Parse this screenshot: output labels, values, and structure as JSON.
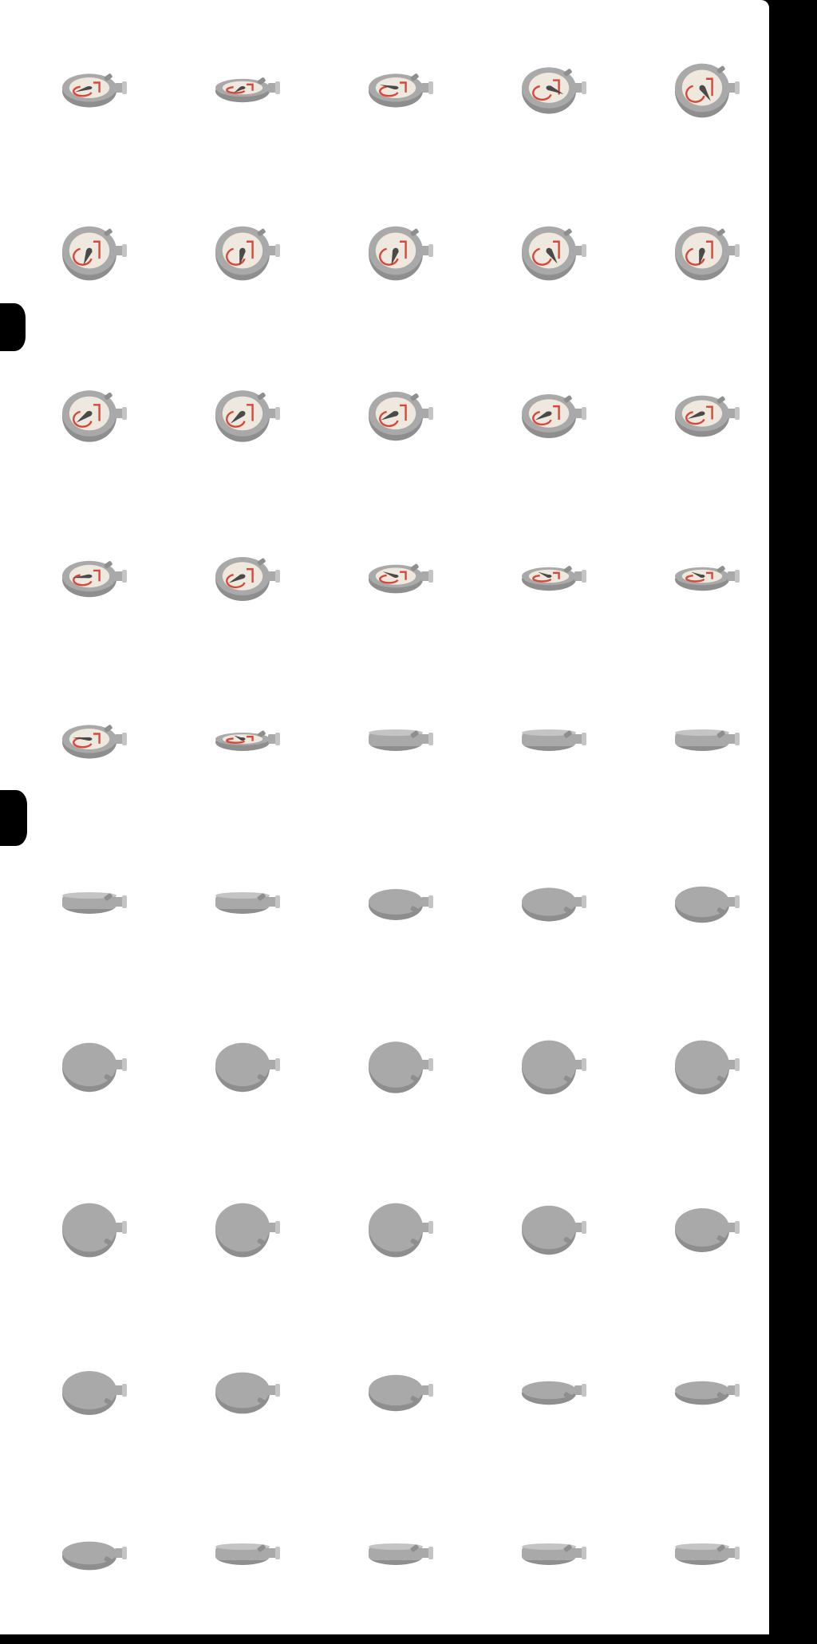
{
  "colors": {
    "background": "#000000",
    "sheet": "#ffffff",
    "body": "#a9a9a9",
    "body_light": "#c4c4c4",
    "body_dark": "#8e8e8e",
    "face": "#efe8de",
    "marking": "#d9473a",
    "needle": "#4a4a4a"
  },
  "sprite_sheet": {
    "columns": 5,
    "rows": 10,
    "frame_count": 50,
    "frames": [
      {
        "view": "front",
        "tilt": 0.55,
        "angle": 150
      },
      {
        "view": "front",
        "tilt": 0.35,
        "angle": 120
      },
      {
        "view": "front",
        "tilt": 0.55,
        "angle": 200
      },
      {
        "view": "front",
        "tilt": 0.8,
        "angle": 30
      },
      {
        "view": "front",
        "tilt": 0.95,
        "angle": 60
      },
      {
        "view": "front",
        "tilt": 0.95,
        "angle": 110
      },
      {
        "view": "front",
        "tilt": 0.95,
        "angle": 100
      },
      {
        "view": "front",
        "tilt": 0.95,
        "angle": 105
      },
      {
        "view": "front",
        "tilt": 0.95,
        "angle": 60
      },
      {
        "view": "front",
        "tilt": 0.95,
        "angle": 100
      },
      {
        "view": "front",
        "tilt": 0.9,
        "angle": 140
      },
      {
        "view": "front",
        "tilt": 0.9,
        "angle": 135
      },
      {
        "view": "front",
        "tilt": 0.85,
        "angle": 150
      },
      {
        "view": "front",
        "tilt": 0.75,
        "angle": 145
      },
      {
        "view": "front",
        "tilt": 0.7,
        "angle": 150
      },
      {
        "view": "front",
        "tilt": 0.6,
        "angle": 170
      },
      {
        "view": "front",
        "tilt": 0.75,
        "angle": 145
      },
      {
        "view": "front",
        "tilt": 0.45,
        "angle": 220
      },
      {
        "view": "front",
        "tilt": 0.35,
        "angle": 230
      },
      {
        "view": "front",
        "tilt": 0.35,
        "angle": 230
      },
      {
        "view": "front",
        "tilt": 0.55,
        "angle": 190
      },
      {
        "view": "front",
        "tilt": 0.25,
        "angle": 240
      },
      {
        "view": "edge",
        "tilt": 0.1,
        "angle": 0
      },
      {
        "view": "edge",
        "tilt": 0.05,
        "angle": 0
      },
      {
        "view": "edge",
        "tilt": 0.12,
        "angle": 0
      },
      {
        "view": "edge",
        "tilt": 0.08,
        "angle": 0
      },
      {
        "view": "edge",
        "tilt": 0.05,
        "angle": 0
      },
      {
        "view": "back",
        "tilt": 0.5,
        "angle": 0
      },
      {
        "view": "back",
        "tilt": 0.55,
        "angle": 0
      },
      {
        "view": "back",
        "tilt": 0.6,
        "angle": 0
      },
      {
        "view": "back",
        "tilt": 0.85,
        "angle": 0
      },
      {
        "view": "back",
        "tilt": 0.85,
        "angle": 0
      },
      {
        "view": "back",
        "tilt": 0.9,
        "angle": 0
      },
      {
        "view": "back",
        "tilt": 0.95,
        "angle": 0
      },
      {
        "view": "back",
        "tilt": 0.95,
        "angle": 0
      },
      {
        "view": "back",
        "tilt": 0.95,
        "angle": 0
      },
      {
        "view": "back",
        "tilt": 0.95,
        "angle": 0
      },
      {
        "view": "back",
        "tilt": 0.95,
        "angle": 0
      },
      {
        "view": "back",
        "tilt": 0.85,
        "angle": 0
      },
      {
        "view": "back",
        "tilt": 0.75,
        "angle": 0
      },
      {
        "view": "back",
        "tilt": 0.75,
        "angle": 0
      },
      {
        "view": "back",
        "tilt": 0.7,
        "angle": 0
      },
      {
        "view": "back",
        "tilt": 0.6,
        "angle": 0
      },
      {
        "view": "back",
        "tilt": 0.35,
        "angle": 0
      },
      {
        "view": "back",
        "tilt": 0.35,
        "angle": 0
      },
      {
        "view": "back",
        "tilt": 0.45,
        "angle": 0
      },
      {
        "view": "edge",
        "tilt": 0.1,
        "angle": 0
      },
      {
        "view": "edge",
        "tilt": 0.12,
        "angle": 0
      },
      {
        "view": "edge",
        "tilt": 0.18,
        "angle": 0
      },
      {
        "view": "edge",
        "tilt": 0.2,
        "angle": 0
      }
    ]
  }
}
